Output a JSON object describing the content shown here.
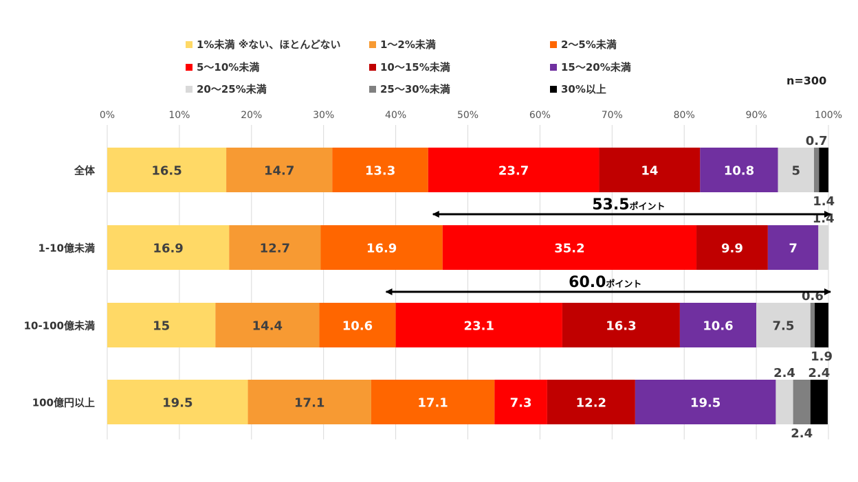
{
  "chart_data": {
    "type": "bar",
    "orientation": "horizontal",
    "stacked": "100%",
    "categories": [
      "全体",
      "1-10億未満",
      "10-100億未満",
      "100億円以上"
    ],
    "series": [
      {
        "name": "1%未満 ※ない、ほとんどない",
        "color": "#FFD966",
        "values": [
          16.5,
          16.9,
          15,
          19.5
        ]
      },
      {
        "name": "1～2%未満",
        "color": "#F79A33",
        "values": [
          14.7,
          12.7,
          14.4,
          17.1
        ]
      },
      {
        "name": "2～5%未満",
        "color": "#FF6600",
        "values": [
          13.3,
          16.9,
          10.6,
          17.1
        ]
      },
      {
        "name": "5～10%未満",
        "color": "#FF0000",
        "values": [
          23.7,
          35.2,
          23.1,
          7.3
        ]
      },
      {
        "name": "10～15%未満",
        "color": "#C00000",
        "values": [
          14,
          9.9,
          16.3,
          12.2
        ]
      },
      {
        "name": "15～20%未満",
        "color": "#7030A0",
        "values": [
          10.8,
          7,
          10.6,
          19.5
        ]
      },
      {
        "name": "20～25%未満",
        "color": "#D9D9D9",
        "values": [
          5,
          1.4,
          7.5,
          2.4
        ]
      },
      {
        "name": "25～30%未満",
        "color": "#808080",
        "values": [
          0.7,
          0,
          0.6,
          2.4
        ]
      },
      {
        "name": "30%以上",
        "color": "#000000",
        "values": [
          1.4,
          0,
          1.9,
          2.4
        ]
      }
    ],
    "xticks": [
      "0%",
      "10%",
      "20%",
      "30%",
      "40%",
      "50%",
      "60%",
      "70%",
      "80%",
      "90%",
      "100%"
    ],
    "xlim": [
      0,
      100
    ],
    "grid": true,
    "legend": "top",
    "annotations": [
      {
        "text": "53.5",
        "unit": "ポイント",
        "from_percent": 46.5,
        "to_percent": 100,
        "between": [
          "全体",
          "1-10億未満"
        ]
      },
      {
        "text": "60.0",
        "unit": "ポイント",
        "from_percent": 40,
        "to_percent": 100,
        "between": [
          "1-10億未満",
          "10-100億未満"
        ]
      }
    ],
    "note": "n=300"
  }
}
